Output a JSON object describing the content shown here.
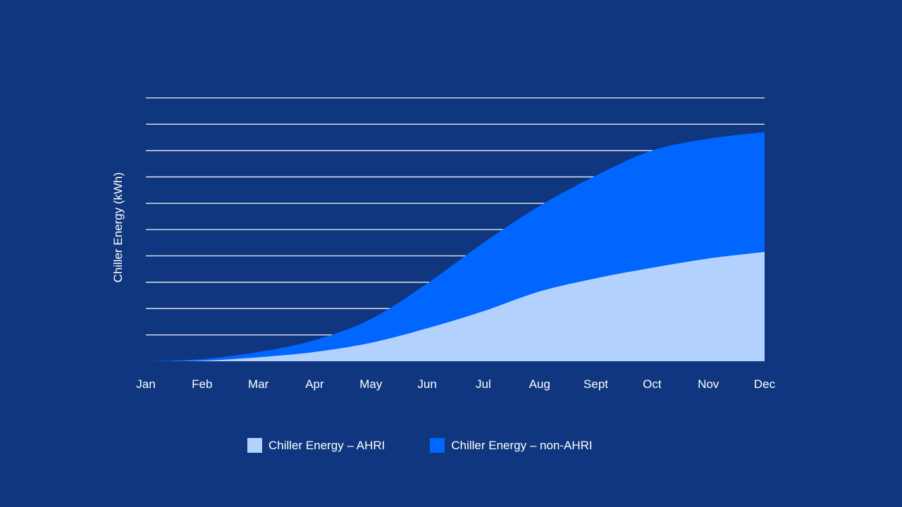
{
  "chart_data": {
    "type": "area",
    "stacked": true,
    "title": "",
    "xlabel": "",
    "ylabel": "Chiller Energy (kWh)",
    "categories": [
      "Jan",
      "Feb",
      "Mar",
      "Apr",
      "May",
      "Jun",
      "Jul",
      "Aug",
      "Sept",
      "Oct",
      "Nov",
      "Dec"
    ],
    "ylim": [
      0,
      10
    ],
    "y_gridlines": 10,
    "y_tick_labels_shown": false,
    "grid": true,
    "legend": "bottom",
    "series": [
      {
        "name": "Chiller Energy – AHRI",
        "color": "#b3d1fd",
        "values": [
          0,
          0.02,
          0.15,
          0.35,
          0.7,
          1.25,
          1.9,
          2.65,
          3.15,
          3.55,
          3.9,
          4.15
        ]
      },
      {
        "name": "Chiller Energy – non-AHRI",
        "color": "#0066ff",
        "values": [
          0,
          0.06,
          0.2,
          0.45,
          0.9,
          1.7,
          2.6,
          3.25,
          3.9,
          4.45,
          4.55,
          4.55
        ]
      }
    ]
  }
}
